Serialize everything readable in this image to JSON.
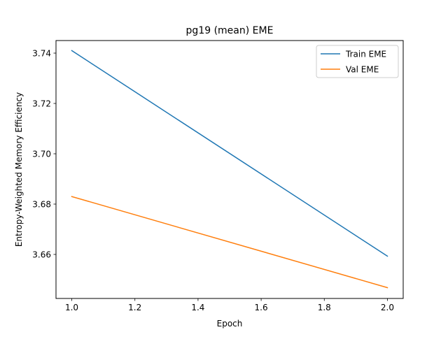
{
  "chart_data": {
    "type": "line",
    "title": "pg19 (mean) EME",
    "xlabel": "Epoch",
    "ylabel": "Entropy-Weighted Memory Efficiency",
    "xlim": [
      0.95,
      2.05
    ],
    "ylim": [
      3.6425,
      3.745
    ],
    "xticks": [
      1.0,
      1.2,
      1.4,
      1.6,
      1.8,
      2.0
    ],
    "xtick_labels": [
      "1.0",
      "1.2",
      "1.4",
      "1.6",
      "1.8",
      "2.0"
    ],
    "yticks": [
      3.66,
      3.68,
      3.7,
      3.72,
      3.74
    ],
    "ytick_labels": [
      "3.66",
      "3.68",
      "3.70",
      "3.72",
      "3.74"
    ],
    "grid": false,
    "legend_position": "top-right",
    "series": [
      {
        "name": "Train EME",
        "color": "#1f77b4",
        "x": [
          1.0,
          2.0
        ],
        "y": [
          3.741,
          3.6593
        ]
      },
      {
        "name": "Val EME",
        "color": "#ff7f0e",
        "x": [
          1.0,
          2.0
        ],
        "y": [
          3.683,
          3.6468
        ]
      }
    ]
  }
}
